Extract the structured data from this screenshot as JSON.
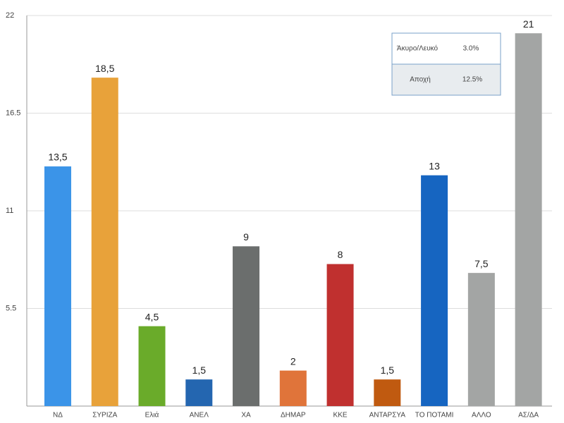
{
  "chart_data": {
    "type": "bar",
    "categories": [
      "ΝΔ",
      "ΣΥΡΙΖΑ",
      "Ελιά",
      "ΑΝΕΛ",
      "ΧΑ",
      "ΔΗΜΑΡ",
      "ΚΚΕ",
      "ΑΝΤΑΡΣΥΑ",
      "ΤΟ ΠΟΤΑΜΙ",
      "ΑΛΛΟ",
      "ΑΣ/ΔΑ"
    ],
    "values": [
      13.5,
      18.5,
      4.5,
      1.5,
      9,
      2,
      8,
      1.5,
      13,
      7.5,
      21
    ],
    "value_labels": [
      "13,5",
      "18,5",
      "4,5",
      "1,5",
      "9",
      "2",
      "8",
      "1,5",
      "13",
      "7,5",
      "21"
    ],
    "colors": [
      "#3b94e8",
      "#e8a23a",
      "#6aab2a",
      "#2466b0",
      "#6b6e6d",
      "#e0743a",
      "#c0302f",
      "#c05a10",
      "#1665c1",
      "#a3a5a4",
      "#a3a5a4"
    ],
    "ylim": [
      0,
      22
    ],
    "yticks": [
      5.5,
      11,
      16.5,
      22
    ],
    "grid": true,
    "inset_table": {
      "rows": [
        [
          "Άκυρο/Λευκό",
          "3.0%"
        ],
        [
          "Αποχή",
          "12.5%"
        ]
      ]
    }
  }
}
